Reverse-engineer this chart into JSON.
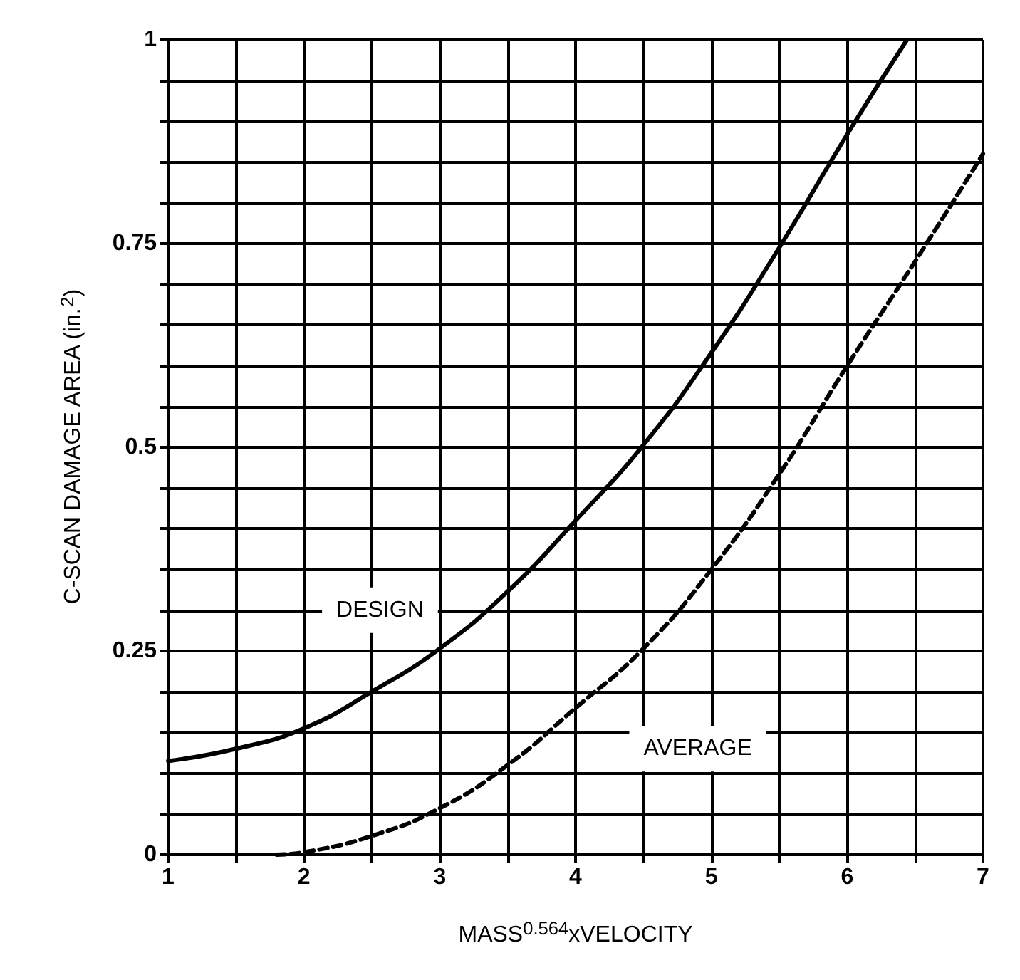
{
  "chart_data": {
    "type": "line",
    "xlabel": "MASS$^{0.564}$xVELOCITY",
    "ylabel": "C-SCAN DAMAGE AREA (in.$^{2}$)",
    "xlim": [
      1,
      7
    ],
    "xticks": [
      1,
      {
        "value": 1.5,
        "label": null
      },
      2,
      {
        "value": 2.5,
        "label": null
      },
      3,
      {
        "value": 3.5,
        "label": null
      },
      4,
      {
        "value": 4.5,
        "label": null
      },
      5,
      {
        "value": 5.5,
        "label": null
      },
      6,
      {
        "value": 6.5,
        "label": null
      },
      7
    ],
    "ylim": [
      0,
      1
    ],
    "yticks": [
      0,
      {
        "value": 0.05,
        "label": null
      },
      {
        "value": 0.1,
        "label": null
      },
      {
        "value": 0.15,
        "label": null
      },
      {
        "value": 0.2,
        "label": null
      },
      0.25,
      {
        "value": 0.3,
        "label": null
      },
      {
        "value": 0.35,
        "label": null
      },
      {
        "value": 0.4,
        "label": null
      },
      {
        "value": 0.45,
        "label": null
      },
      0.5,
      {
        "value": 0.55,
        "label": null
      },
      {
        "value": 0.6,
        "label": null
      },
      {
        "value": 0.65,
        "label": null
      },
      {
        "value": 0.7,
        "label": null
      },
      0.75,
      {
        "value": 0.8,
        "label": null
      },
      {
        "value": 0.85,
        "label": null
      },
      {
        "value": 0.9,
        "label": null
      },
      {
        "value": 0.95,
        "label": null
      },
      1
    ],
    "grid": true,
    "marker": "none",
    "series": [
      {
        "color": "#000000",
        "line_style": "solid",
        "x": [
          1,
          1.5,
          2,
          2.5,
          3,
          3.5,
          4,
          4.5,
          5,
          5.5,
          6,
          6.44
        ],
        "values": [
          0.115,
          0.13,
          0.155,
          0.2,
          0.253,
          0.323,
          0.41,
          0.503,
          0.616,
          0.745,
          0.884,
          1.0
        ]
      },
      {
        "color": "#000000",
        "line_style": "dashed",
        "x": [
          1.8,
          2,
          2.5,
          3,
          3.5,
          4,
          4.5,
          5,
          5.5,
          6,
          6.5,
          7
        ],
        "values": [
          0,
          0.003,
          0.023,
          0.057,
          0.11,
          0.18,
          0.253,
          0.35,
          0.467,
          0.6,
          0.728,
          0.86
        ]
      }
    ],
    "annotations": [
      "DESIGN",
      "AVERAGE"
    ]
  }
}
